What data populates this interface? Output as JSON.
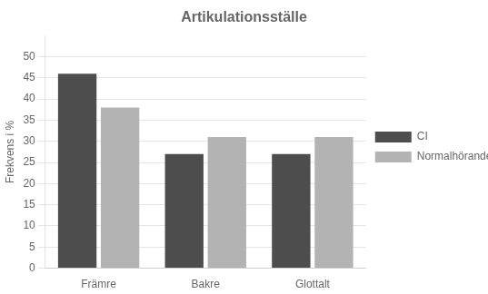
{
  "chart_data": {
    "type": "bar",
    "title": "Artikulationsställe",
    "categories": [
      "Främre",
      "Bakre",
      "Glottalt"
    ],
    "series": [
      {
        "name": "CI",
        "color": "#4d4d4d",
        "values": [
          46,
          27,
          27
        ]
      },
      {
        "name": "Normalhörande",
        "color": "#b3b3b3",
        "values": [
          38,
          31,
          31
        ]
      }
    ],
    "ylabel": "Frekvens i %",
    "ylim": [
      0,
      55
    ],
    "yticks": [
      0,
      5,
      10,
      15,
      20,
      25,
      30,
      35,
      40,
      45,
      50
    ],
    "grid": true,
    "legend": "right"
  }
}
